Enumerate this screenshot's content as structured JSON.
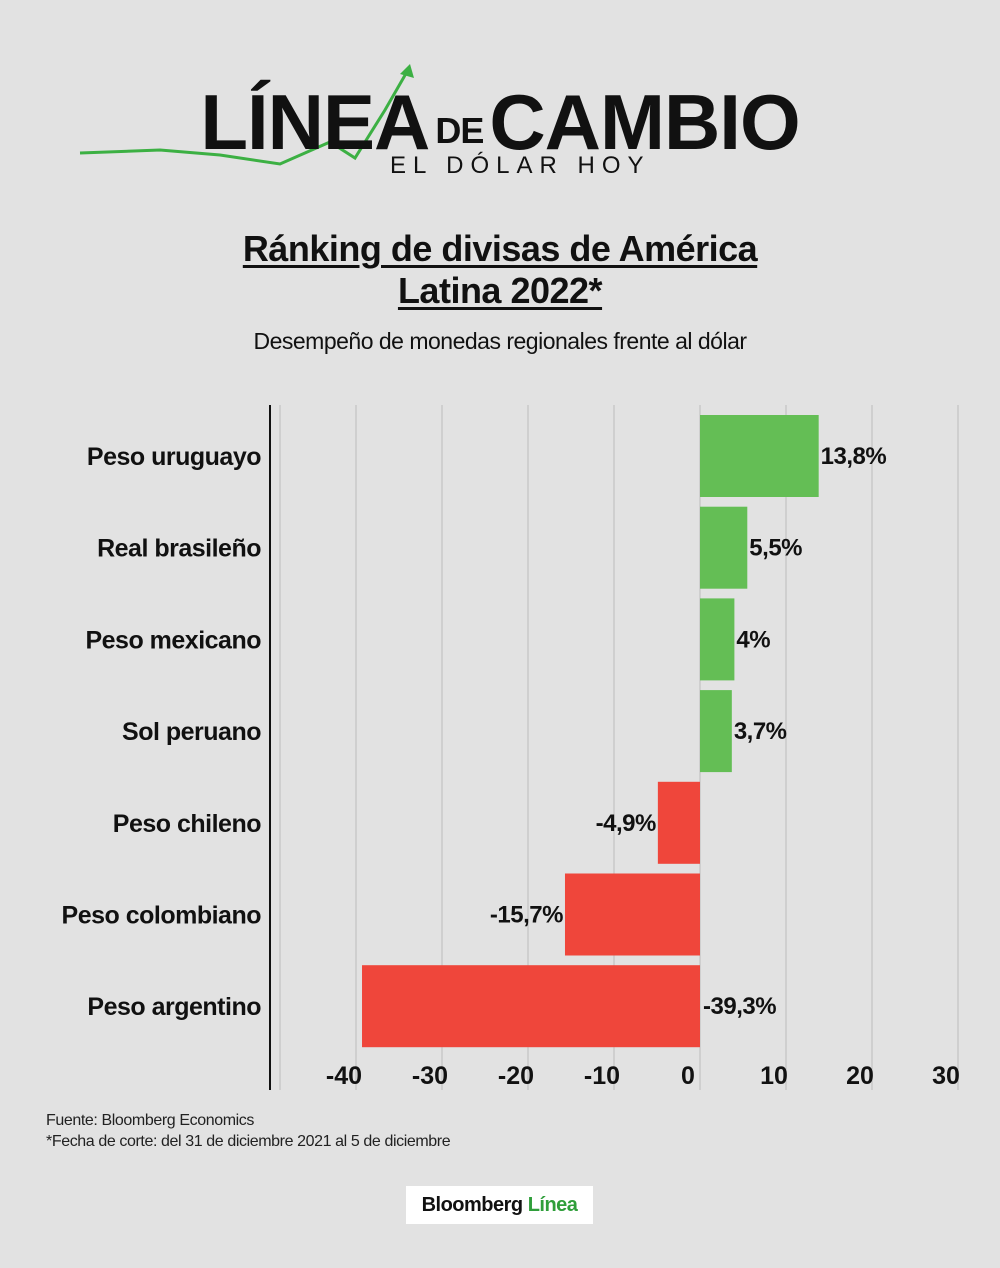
{
  "logo": {
    "main_left": "LÍNEA",
    "main_de": "DE",
    "main_right": "CAMBIO",
    "sub": "EL DÓLAR HOY",
    "accent_color": "#3cb043"
  },
  "title_line1": "Ránking de divisas de América",
  "title_line2": "Latina 2022*",
  "subtitle": "Desempeño de monedas regionales frente al dólar",
  "footnotes": {
    "source": "Fuente: Bloomberg Economics",
    "note": "*Fecha de corte: del 31 de diciembre 2021 al 5 de diciembre"
  },
  "badge": {
    "brand": "Bloomberg",
    "accent": "Línea"
  },
  "chart_data": {
    "type": "bar",
    "orientation": "horizontal",
    "categories": [
      "Peso uruguayo",
      "Real brasileño",
      "Peso mexicano",
      "Sol peruano",
      "Peso chileno",
      "Peso colombiano",
      "Peso argentino"
    ],
    "values": [
      13.8,
      5.5,
      4.0,
      3.7,
      -4.9,
      -15.7,
      -39.3
    ],
    "value_labels": [
      "13,8%",
      "5,5%",
      "4%",
      "3,7%",
      "-4,9%",
      "-15,7%",
      "-39,3%"
    ],
    "xlim": [
      -50,
      30
    ],
    "x_ticks": [
      -40,
      -30,
      -20,
      -10,
      0,
      10,
      20,
      30
    ],
    "x_tick_labels": [
      "-40",
      "-30",
      "-20",
      "-10",
      "0",
      "10",
      "20",
      "30"
    ],
    "grid": true,
    "colors": {
      "positive": "#64be55",
      "negative": "#ef463b",
      "grid": "#bcbcbc",
      "axis": "#111111"
    }
  }
}
